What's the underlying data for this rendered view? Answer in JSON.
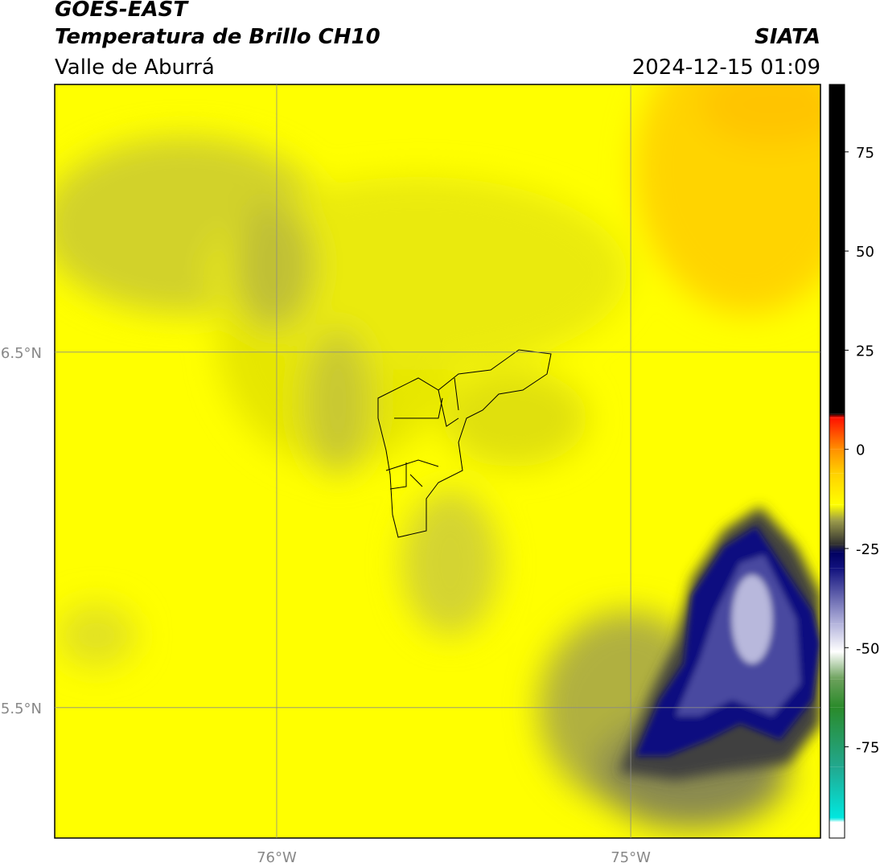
{
  "chart_data": {
    "type": "map",
    "title": "GOES-EAST",
    "subtitle": "Temperatura de Brillo CH10",
    "region": "Valle de Aburrá",
    "source": "SIATA",
    "datetime": "2024-12-15 01:09",
    "xlim": [
      -76.627,
      -74.464
    ],
    "ylim": [
      5.133,
      7.253
    ],
    "xticks": [
      {
        "value": -76,
        "label": "76°W"
      },
      {
        "value": -75,
        "label": "75°W"
      }
    ],
    "yticks": [
      {
        "value": 5.5,
        "label": "5.5°N"
      },
      {
        "value": 6.5,
        "label": "6.5°N"
      }
    ],
    "grid": true,
    "colorbar": {
      "lim": [
        -98,
        92
      ],
      "ticks": [
        75,
        50,
        25,
        0,
        -25,
        -50,
        -75
      ],
      "stops": [
        {
          "value": -98,
          "color": "#ffffff"
        },
        {
          "value": -94,
          "color": "#ffffff"
        },
        {
          "value": -93,
          "color": "#00e8e0"
        },
        {
          "value": -80,
          "color": "#22a88e"
        },
        {
          "value": -65,
          "color": "#2a8a2a"
        },
        {
          "value": -58,
          "color": "#6aa05a"
        },
        {
          "value": -51,
          "color": "#ffffff"
        },
        {
          "value": -44,
          "color": "#b4b4dc"
        },
        {
          "value": -30,
          "color": "#12127e"
        },
        {
          "value": -26,
          "color": "#000060"
        },
        {
          "value": -24,
          "color": "#303030"
        },
        {
          "value": -18,
          "color": "#9a9a4a"
        },
        {
          "value": -14,
          "color": "#ffff00"
        },
        {
          "value": -6,
          "color": "#ffd000"
        },
        {
          "value": 0,
          "color": "#ff9000"
        },
        {
          "value": 8,
          "color": "#ff1000"
        },
        {
          "value": 9,
          "color": "#000000"
        },
        {
          "value": 92,
          "color": "#000000"
        }
      ]
    }
  }
}
